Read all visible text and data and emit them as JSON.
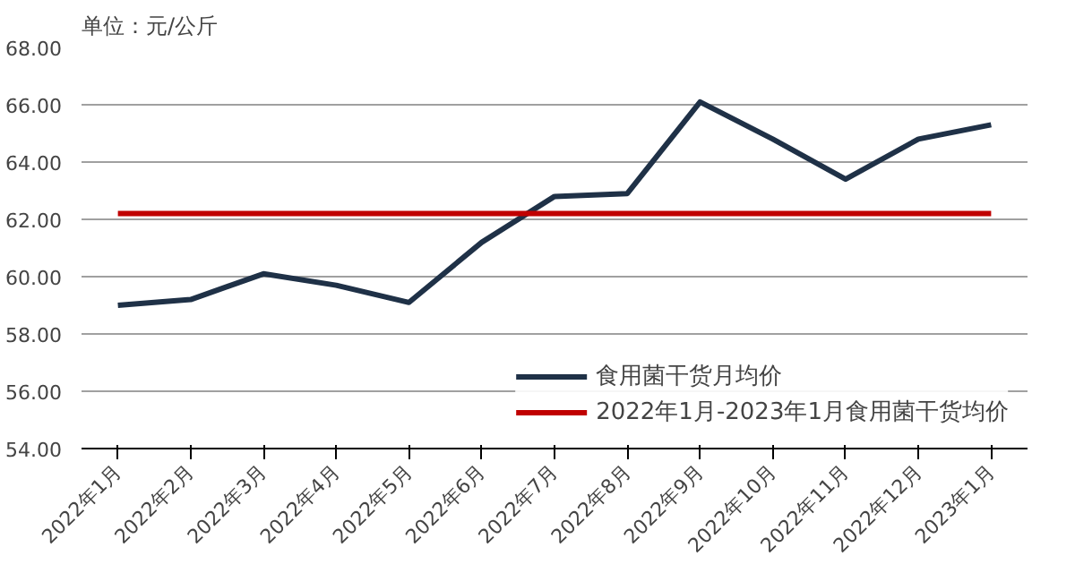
{
  "chart_data": {
    "type": "line",
    "title": "单位：元/公斤",
    "categories": [
      "2022年1月",
      "2022年2月",
      "2022年3月",
      "2022年4月",
      "2022年5月",
      "2022年6月",
      "2022年7月",
      "2022年8月",
      "2022年9月",
      "2022年10月",
      "2022年11月",
      "2022年12月",
      "2023年1月"
    ],
    "series": [
      {
        "name": "食用菌干货月均价",
        "color": "#1f3147",
        "values": [
          59.0,
          59.2,
          60.1,
          59.7,
          59.1,
          61.2,
          62.8,
          62.9,
          66.1,
          64.8,
          63.4,
          64.8,
          65.3
        ]
      },
      {
        "name": "2022年1月-2023年1月食用菌干货均价",
        "color": "#c00000",
        "values": [
          62.2,
          62.2,
          62.2,
          62.2,
          62.2,
          62.2,
          62.2,
          62.2,
          62.2,
          62.2,
          62.2,
          62.2,
          62.2
        ]
      }
    ],
    "ylim": [
      54,
      68
    ],
    "yticks": [
      {
        "value": 54,
        "label": "54.00"
      },
      {
        "value": 56,
        "label": "56.00"
      },
      {
        "value": 58,
        "label": "58.00"
      },
      {
        "value": 60,
        "label": "60.00"
      },
      {
        "value": 62,
        "label": "62.00"
      },
      {
        "value": 64,
        "label": "64.00"
      },
      {
        "value": 66,
        "label": "66.00"
      },
      {
        "value": 68,
        "label": "68.00"
      }
    ],
    "grid": "y",
    "legend": "bottom right",
    "marker": "none",
    "line_style": "solid"
  }
}
